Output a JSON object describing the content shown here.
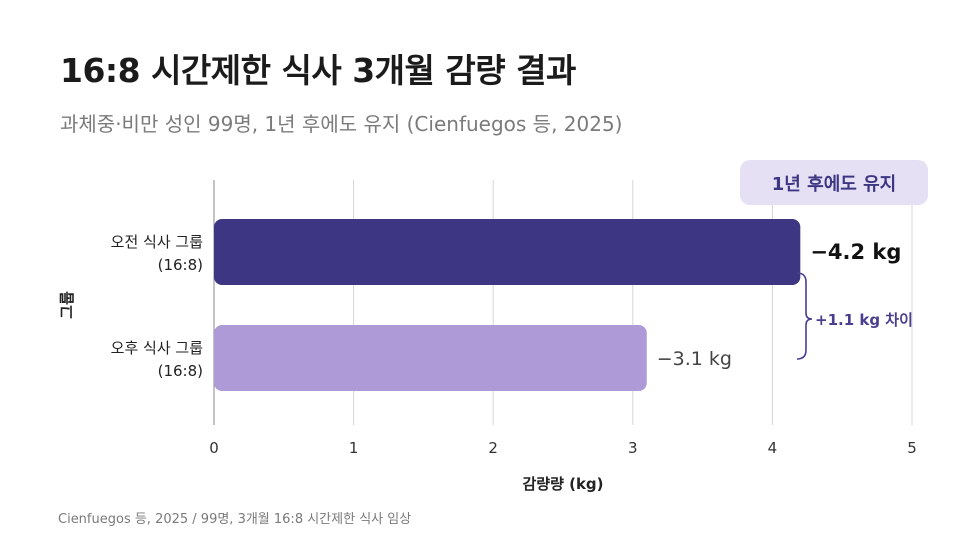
{
  "title": "16:8 시간제한 식사 3개월 감량 결과",
  "subtitle": "과체중·비만 성인 99명, 1년 후에도 유지 (Cienfuegos 등, 2025)",
  "footer": "Cienfuegos 등, 2025 / 99명, 3개월 16:8 시간제한 식사 임상",
  "colors": {
    "bar_morning": "#3d3683",
    "bar_afternoon": "#ad9ad6",
    "badge_bg": "#e6e0f5",
    "badge_text": "#3d3683",
    "diff_text": "#4a3f8f",
    "grid": "#d6d6d6"
  },
  "chart_data": {
    "type": "bar",
    "orientation": "horizontal",
    "categories": [
      [
        "오전 식사 그룹",
        "(16:8)"
      ],
      [
        "오후 식사 그룹",
        "(16:8)"
      ]
    ],
    "values": [
      4.2,
      3.1
    ],
    "value_labels": [
      "−4.2 kg",
      "−3.1 kg"
    ],
    "xlabel": "감량량 (kg)",
    "ylabel": "그룹",
    "xlim": [
      0,
      5
    ],
    "xticks": [
      "0",
      "1",
      "2",
      "3",
      "4",
      "5"
    ],
    "grid": true,
    "annotations": {
      "badge": "1년 후에도 유지",
      "difference": "+1.1 kg 차이"
    }
  }
}
